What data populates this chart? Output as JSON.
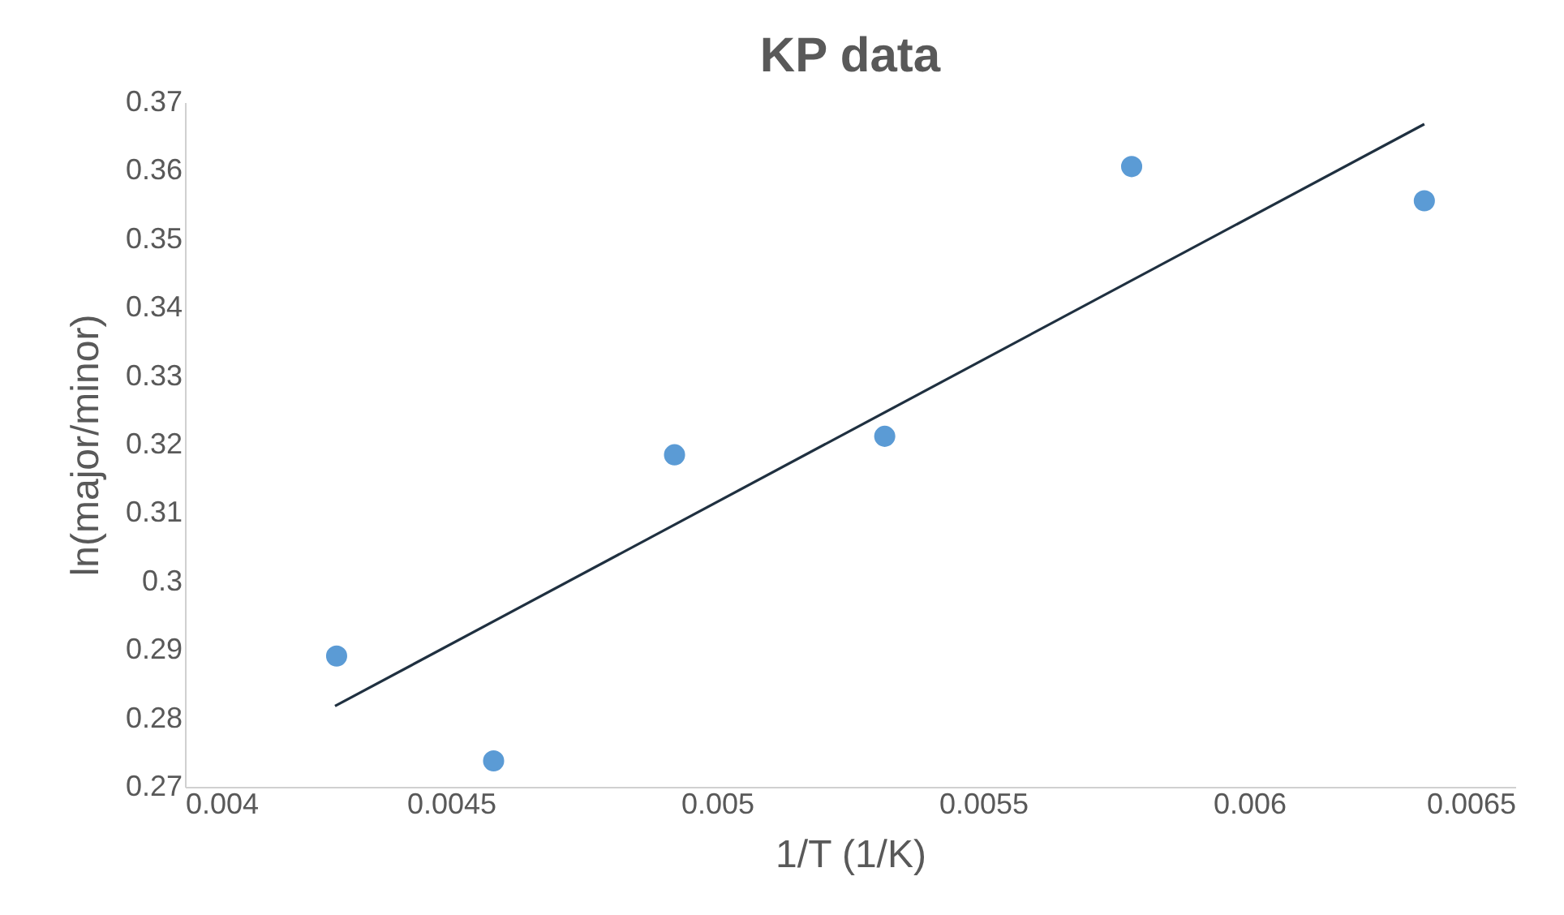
{
  "chart_data": {
    "type": "scatter",
    "title": "KP data",
    "xlabel": "1/T (1/K)",
    "ylabel": "ln(major/minor)",
    "series": [
      {
        "color": "#5b9bd5",
        "marker": "circle",
        "x": [
          0.004285,
          0.00458,
          0.00492,
          0.005315,
          0.005779,
          0.006329
        ],
        "values": [
          0.2891,
          0.2738,
          0.3185,
          0.3212,
          0.3606,
          0.3556
        ]
      },
      {
        "type": "line",
        "color": "#1f3040",
        "x": [
          0.004282,
          0.006329
        ],
        "values": [
          0.2818,
          0.3668
        ]
      }
    ],
    "xlim": [
      0.004,
      0.0065
    ],
    "xticks": [
      0.004,
      0.0045,
      0.005,
      0.0055,
      0.006,
      0.0065
    ],
    "ylim": [
      0.27,
      0.37
    ],
    "yticks": [
      0.27,
      0.28,
      0.29,
      0.3,
      0.31,
      0.32,
      0.33,
      0.34,
      0.35,
      0.36,
      0.37
    ],
    "grid": false,
    "legend": false
  }
}
